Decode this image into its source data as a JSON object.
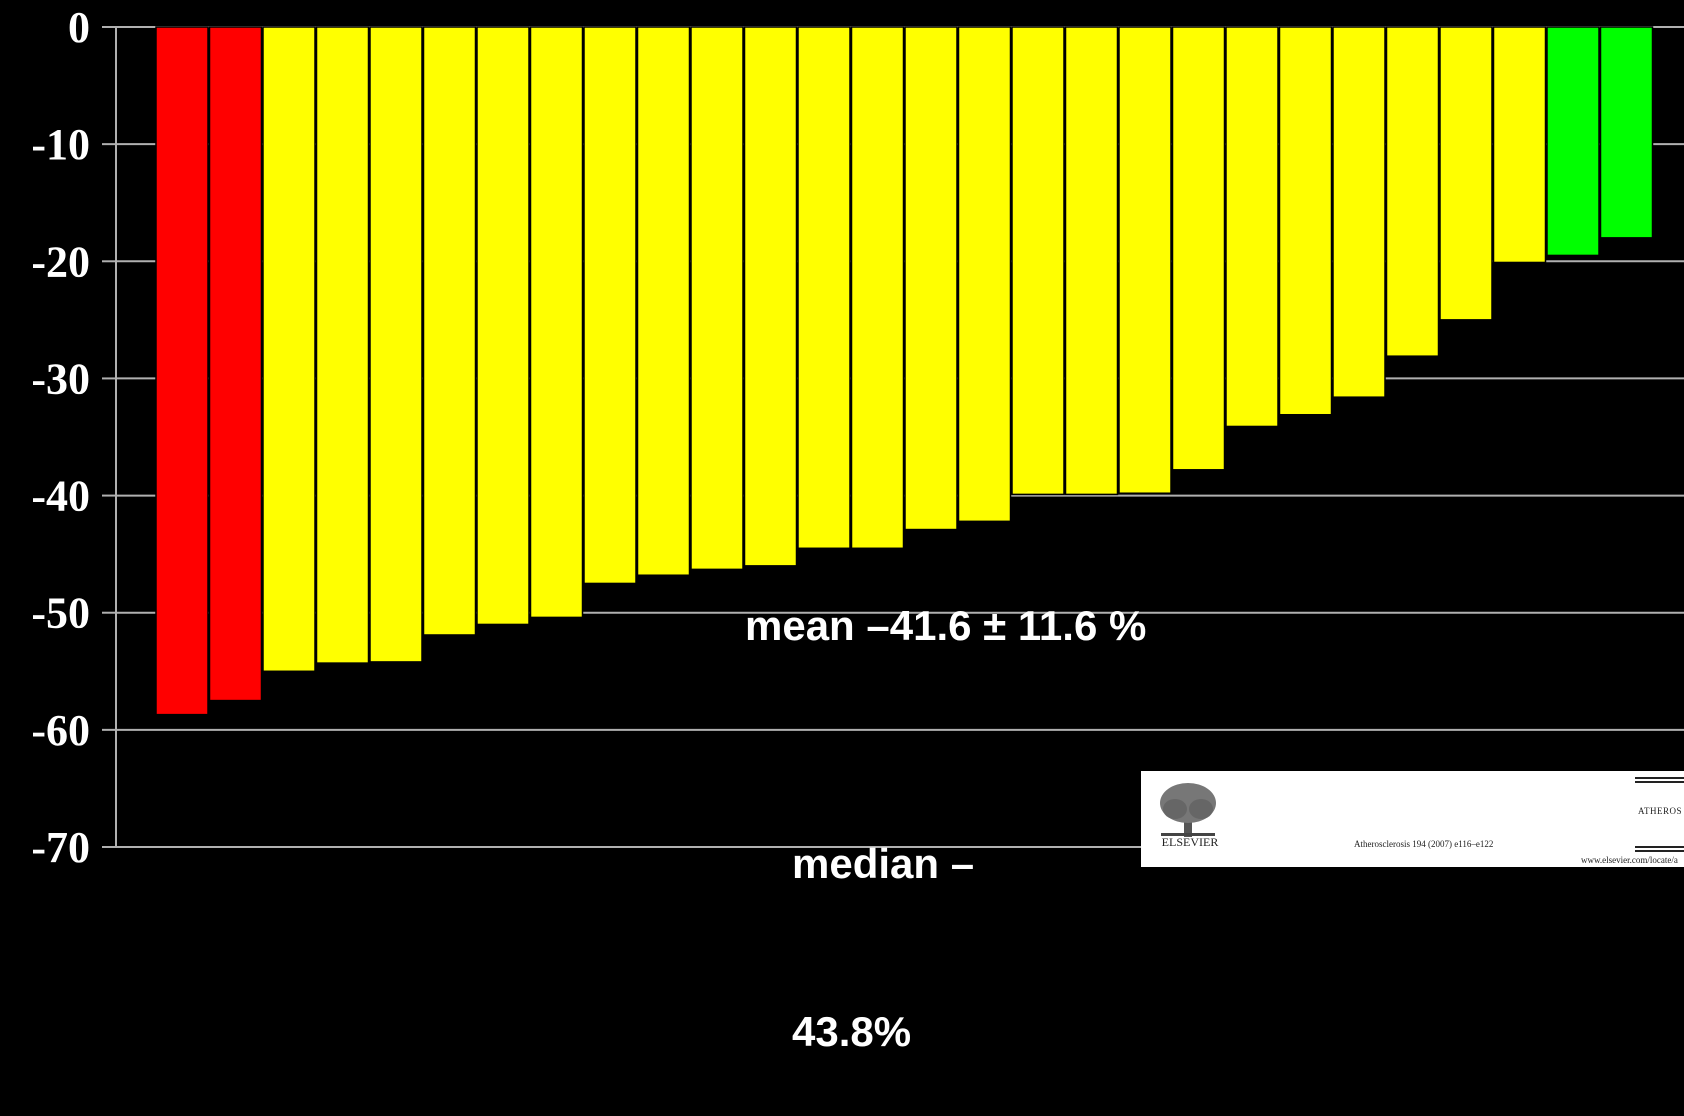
{
  "chart_data": {
    "type": "bar",
    "ylim": [
      -70,
      0
    ],
    "y_ticks": [
      "0",
      "-10",
      "-20",
      "-30",
      "-40",
      "-50",
      "-60",
      "-70"
    ],
    "y_tick_values": [
      0,
      -10,
      -20,
      -30,
      -40,
      -50,
      -60,
      -70
    ],
    "grid": true,
    "values": [
      -58.7,
      -57.5,
      -55.0,
      -54.3,
      -54.2,
      -51.9,
      -51.0,
      -50.4,
      -47.5,
      -46.8,
      -46.3,
      -46.0,
      -44.5,
      -44.5,
      -42.9,
      -42.2,
      -39.9,
      -39.9,
      -39.8,
      -37.8,
      -34.1,
      -33.1,
      -31.6,
      -28.1,
      -25.0,
      -20.1,
      -19.5,
      -18.0
    ],
    "colors": [
      "#ff0000",
      "#ff0000",
      "#ffff00",
      "#ffff00",
      "#ffff00",
      "#ffff00",
      "#ffff00",
      "#ffff00",
      "#ffff00",
      "#ffff00",
      "#ffff00",
      "#ffff00",
      "#ffff00",
      "#ffff00",
      "#ffff00",
      "#ffff00",
      "#ffff00",
      "#ffff00",
      "#ffff00",
      "#ffff00",
      "#ffff00",
      "#ffff00",
      "#ffff00",
      "#ffff00",
      "#ffff00",
      "#ffff00",
      "#00ff00",
      "#00ff00"
    ],
    "annotations": {
      "mean": "mean –41.6 ± 11.6 %",
      "median_line1": "median –",
      "median_line2": "43.8%"
    }
  },
  "citation": {
    "publisher": "ELSEVIER",
    "reference": "Atherosclerosis 194 (2007) e116–e122",
    "journal": "ATHEROS",
    "url": "www.elsevier.com/locate/a"
  },
  "colors": {
    "background": "#000000",
    "grid": "#b0b0b0",
    "red": "#ff0000",
    "yellow": "#ffff00",
    "green": "#00ff00"
  }
}
